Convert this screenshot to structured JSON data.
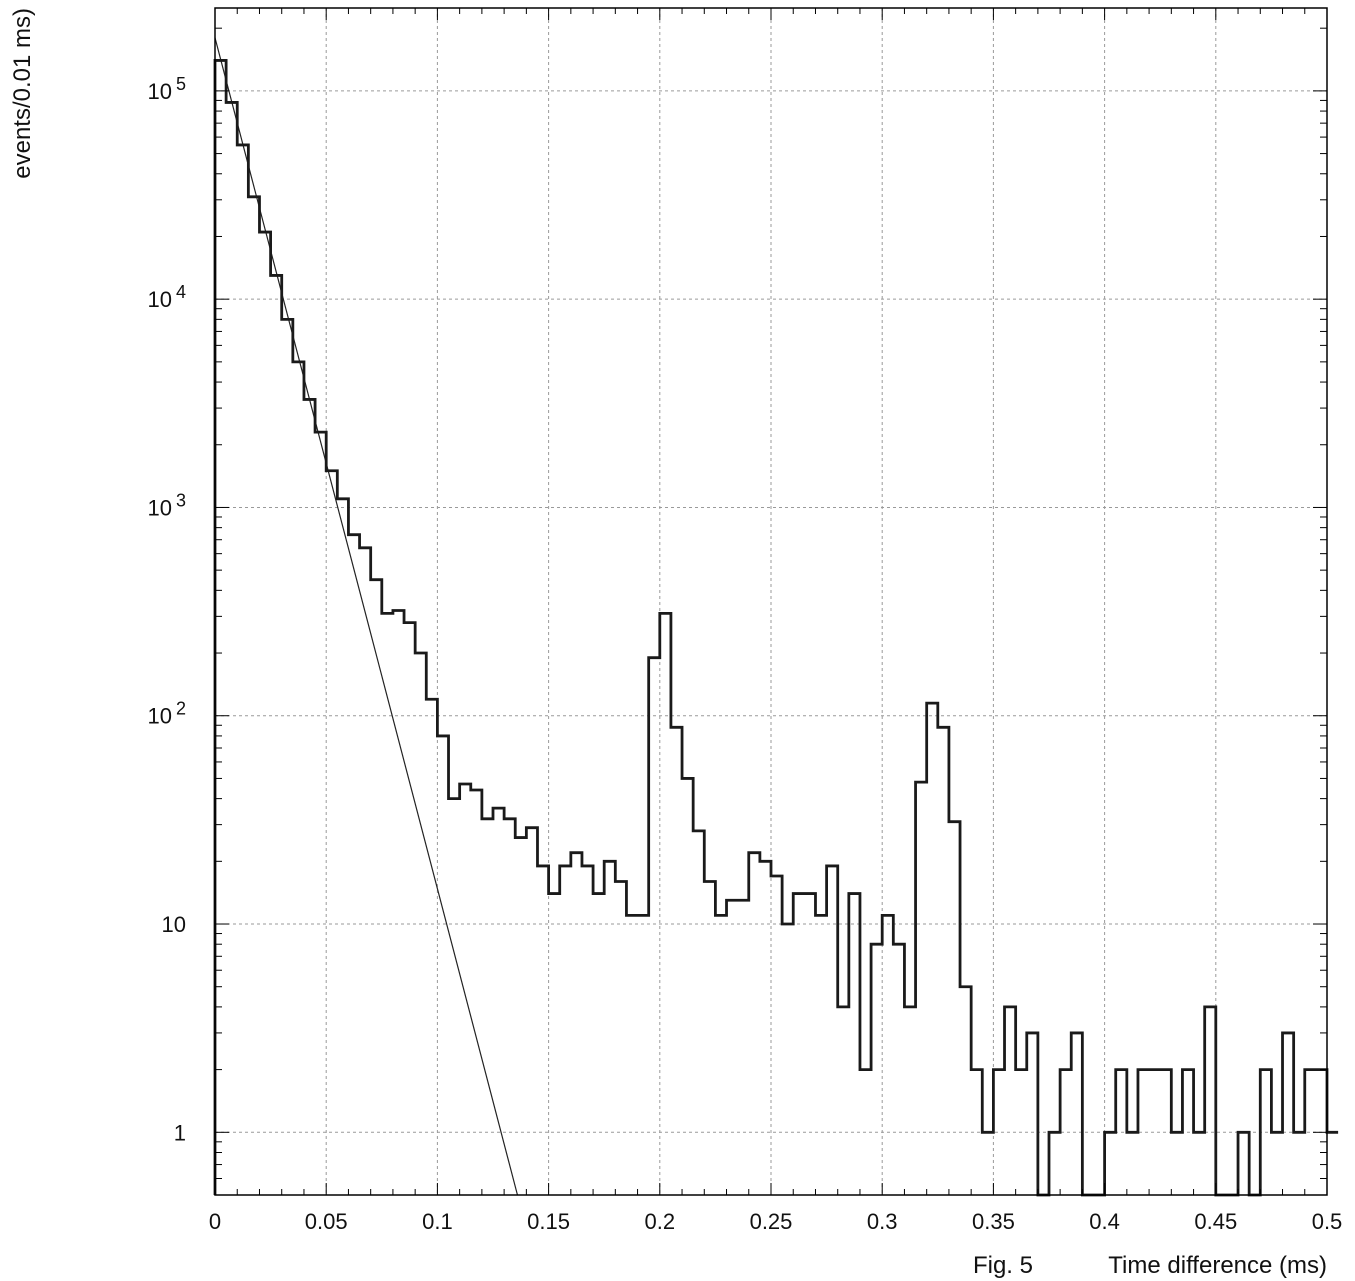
{
  "chart_data": {
    "type": "histogram",
    "xlabel": "Time difference (ms)",
    "figure_label": "Fig. 5",
    "ylabel": "events/0.01 ms)",
    "y_scale": "log",
    "grid": true,
    "xlim": [
      0,
      0.5
    ],
    "ylim": [
      0.5,
      250000
    ],
    "x_ticks": [
      {
        "value": 0,
        "label": "0"
      },
      {
        "value": 0.05,
        "label": "0.05"
      },
      {
        "value": 0.1,
        "label": "0.1"
      },
      {
        "value": 0.15,
        "label": "0.15"
      },
      {
        "value": 0.2,
        "label": "0.2"
      },
      {
        "value": 0.25,
        "label": "0.25"
      },
      {
        "value": 0.3,
        "label": "0.3"
      },
      {
        "value": 0.35,
        "label": "0.35"
      },
      {
        "value": 0.4,
        "label": "0.4"
      },
      {
        "value": 0.45,
        "label": "0.45"
      },
      {
        "value": 0.5,
        "label": "0.5"
      }
    ],
    "y_ticks": [
      {
        "value": 1,
        "base": "1",
        "exp": ""
      },
      {
        "value": 10,
        "base": "10",
        "exp": ""
      },
      {
        "value": 100,
        "base": "10",
        "exp": "2"
      },
      {
        "value": 1000,
        "base": "10",
        "exp": "3"
      },
      {
        "value": 10000,
        "base": "10",
        "exp": "4"
      },
      {
        "value": 100000,
        "base": "10",
        "exp": "5"
      }
    ],
    "bin_width": 0.005,
    "histogram_values": [
      140000,
      88000,
      55000,
      31000,
      21000,
      13000,
      8000,
      5000,
      3300,
      2300,
      1500,
      1100,
      740,
      640,
      450,
      310,
      320,
      280,
      200,
      120,
      80,
      40,
      47,
      44,
      32,
      36,
      32,
      26,
      29,
      19,
      14,
      19,
      22,
      19,
      14,
      20,
      16,
      11,
      11,
      190,
      310,
      88,
      50,
      28,
      16,
      11,
      13,
      13,
      22,
      20,
      17,
      10,
      14,
      14,
      11,
      19,
      4,
      14,
      2,
      8,
      11,
      8,
      4,
      48,
      115,
      88,
      31,
      5,
      2,
      1,
      2,
      4,
      2,
      3,
      0.5,
      1,
      2,
      3,
      0.5,
      0.5,
      1,
      2,
      1,
      2,
      2,
      2,
      1,
      2,
      1,
      4,
      0.5,
      0.5,
      1,
      0.5,
      2,
      1,
      3,
      1,
      2,
      2,
      1,
      1
    ],
    "fit_line": {
      "x": [
        0,
        0.136
      ],
      "y": [
        180000,
        0.5
      ]
    }
  }
}
